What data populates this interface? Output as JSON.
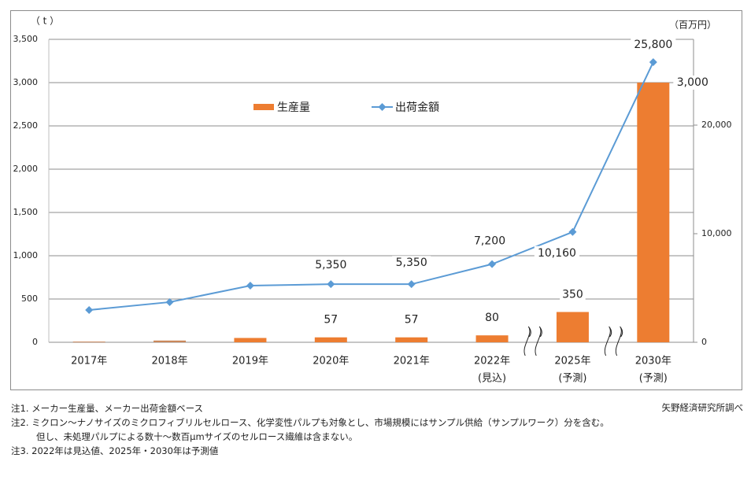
{
  "chart_data": {
    "type": "bar+line",
    "title": "",
    "categories": [
      {
        "label": "2017年",
        "sub": ""
      },
      {
        "label": "2018年",
        "sub": ""
      },
      {
        "label": "2019年",
        "sub": ""
      },
      {
        "label": "2020年",
        "sub": ""
      },
      {
        "label": "2021年",
        "sub": ""
      },
      {
        "label": "2022年",
        "sub": "(見込)"
      },
      {
        "label": "2025年",
        "sub": "(予測)"
      },
      {
        "label": "2030年",
        "sub": "(予測)"
      }
    ],
    "left_axis": {
      "unit_label": "（ t ）",
      "min": 0,
      "max": 3500,
      "step": 500,
      "ticks": [
        "0",
        "500",
        "1,000",
        "1,500",
        "2,000",
        "2,500",
        "3,000",
        "3,500"
      ]
    },
    "right_axis": {
      "unit_label": "（百万円）",
      "min": 0,
      "max": 27900,
      "ticks": [
        {
          "value": 0,
          "label": "0"
        },
        {
          "value": 10000,
          "label": "10,000"
        },
        {
          "value": 20000,
          "label": "20,000"
        }
      ]
    },
    "series": [
      {
        "name": "生産量",
        "type": "bar",
        "axis": "left",
        "color": "#ed7d31",
        "values": [
          8,
          20,
          50,
          57,
          57,
          80,
          350,
          3000
        ],
        "labels": [
          "",
          "",
          "",
          "57",
          "57",
          "80",
          "350",
          "3,000"
        ]
      },
      {
        "name": "出荷金額",
        "type": "line",
        "axis": "right",
        "color": "#5b9bd5",
        "marker": "diamond",
        "values": [
          2970,
          3700,
          5220,
          5350,
          5350,
          7200,
          10160,
          25800
        ],
        "labels": [
          "",
          "",
          "",
          "5,350",
          "5,350",
          "7,200",
          "10,160",
          "25,800"
        ]
      }
    ],
    "legend": {
      "placement": "top-center",
      "items": [
        "生産量",
        "出荷金額"
      ]
    },
    "axis_breaks_between": [
      [
        "2022年",
        "2025年"
      ],
      [
        "2025年",
        "2030年"
      ]
    ],
    "grid": true
  },
  "notes": [
    "注1.  メーカー生産量、メーカー出荷金額ベース",
    "注2.  ミクロン～ナノサイズのミクロフィブリルセルロース、化学変性パルプも対象とし、市場規模にはサンプル供給（サンプルワーク）分を含む。",
    "但し、未処理パルプによる数十～数百μmサイズのセルロース繊維は含まない。",
    "注3.  2022年は見込値、2025年・2030年は予測値"
  ],
  "source": "矢野経済研究所調べ"
}
